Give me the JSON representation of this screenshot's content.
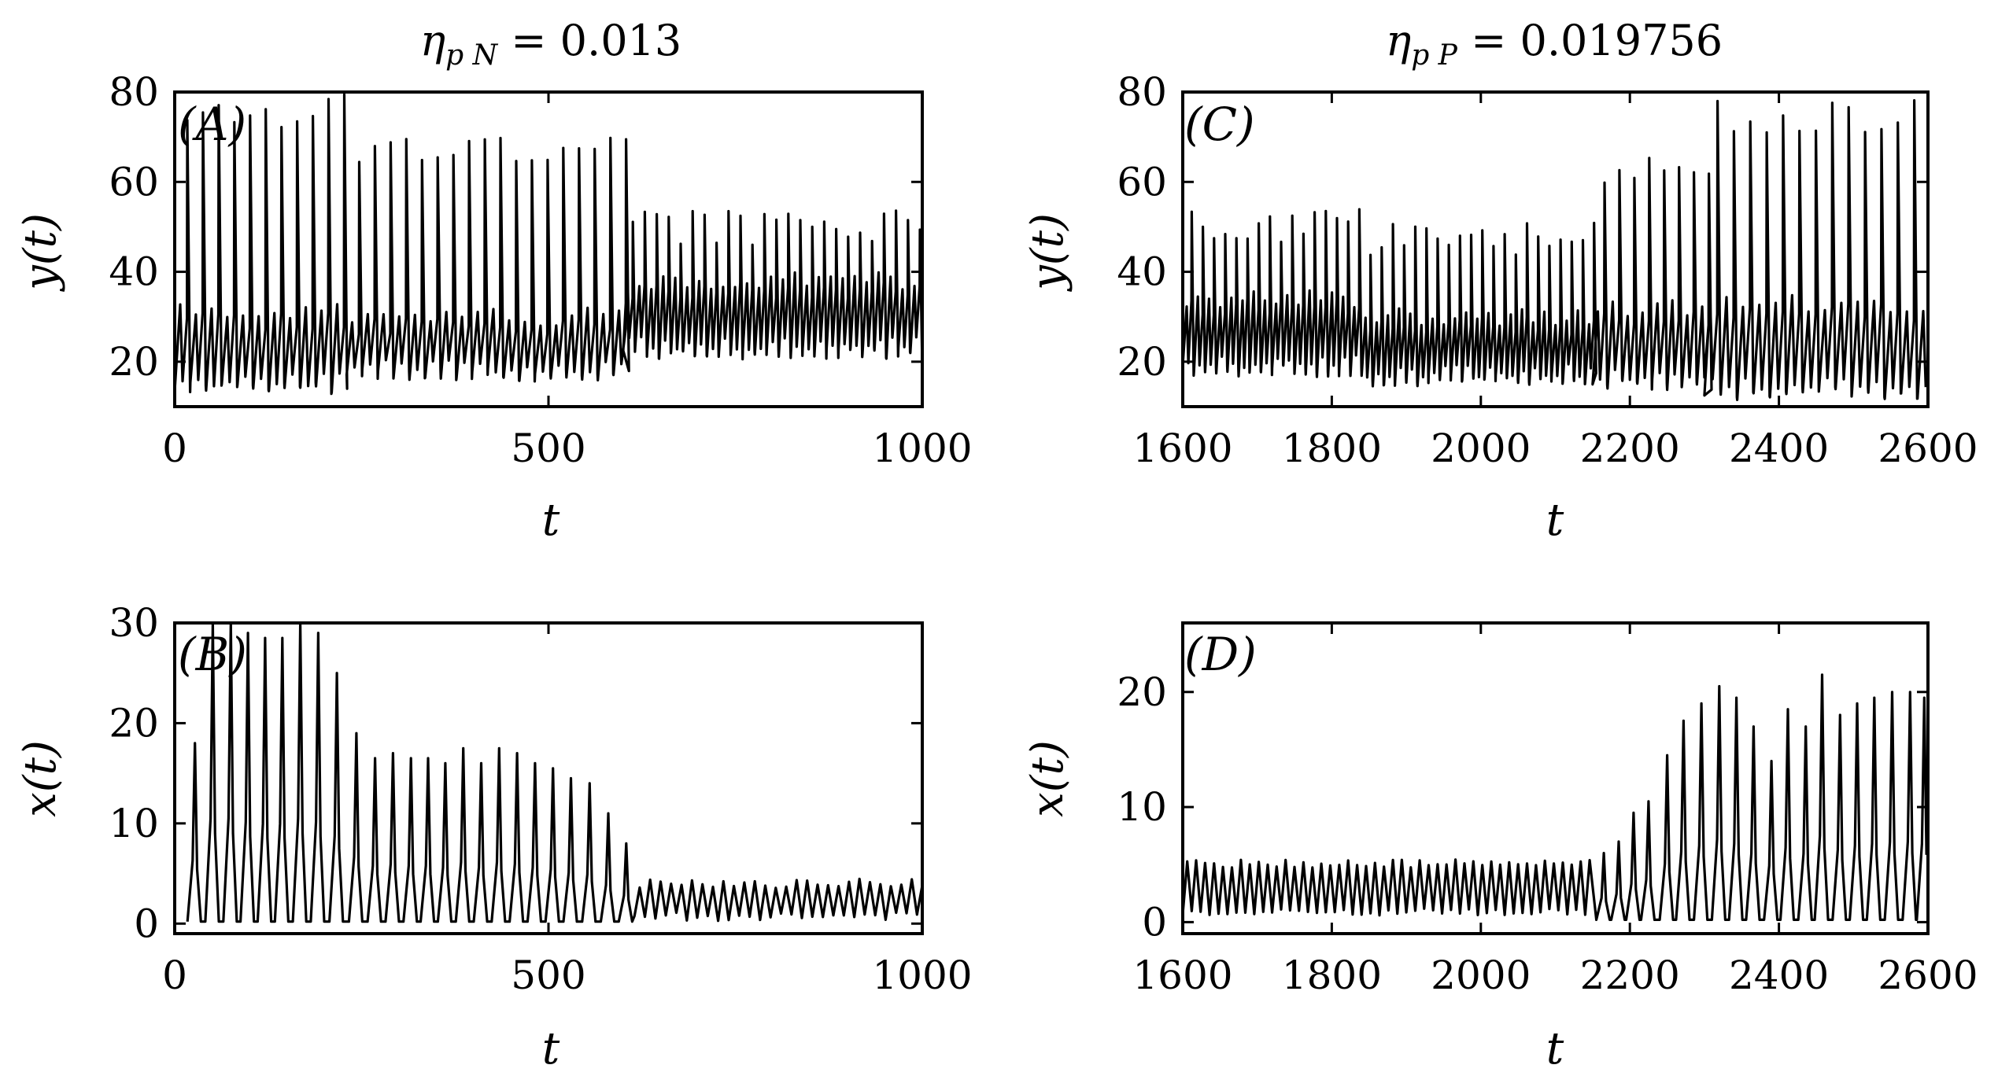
{
  "chart_data": [
    {
      "id": "A",
      "type": "line",
      "panel_label": "(A)",
      "title": "η_pN = 0.013",
      "title_main": "η",
      "title_sub": "p N",
      "title_rest": " = 0.013",
      "xlabel": "t",
      "ylabel": "y(t)",
      "xlim": [
        0,
        1000
      ],
      "ylim": [
        10,
        80
      ],
      "xticks": [
        0,
        500,
        1000
      ],
      "yticks": [
        20,
        40,
        60,
        80
      ],
      "xtick_labels": [
        "0",
        "500",
        "1000"
      ],
      "ytick_labels": [
        "20",
        "40",
        "60",
        "80"
      ],
      "grid": false,
      "series": [
        {
          "kind": "relaxation",
          "t0": 0,
          "t1": 1000,
          "segments": [
            {
              "from": 0,
              "to": 230,
              "period": 21,
              "low": 14,
              "hi": 31,
              "peak": 76
            },
            {
              "from": 230,
              "to": 600,
              "period": 21,
              "low": 17,
              "hi": 30,
              "peak": 68
            },
            {
              "from": 600,
              "to": 1000,
              "period": 16,
              "low": 22,
              "hi": 38,
              "peak": 50
            }
          ]
        }
      ]
    },
    {
      "id": "B",
      "type": "line",
      "panel_label": "(B)",
      "xlabel": "t",
      "ylabel": "x(t)",
      "xlim": [
        0,
        1000
      ],
      "ylim": [
        -1,
        30
      ],
      "xticks": [
        0,
        500,
        1000
      ],
      "yticks": [
        0,
        10,
        20,
        30
      ],
      "xtick_labels": [
        "0",
        "500",
        "1000"
      ],
      "ytick_labels": [
        "0",
        "10",
        "20",
        "30"
      ],
      "grid": false,
      "series": [
        {
          "kind": "spikes",
          "t0": 0,
          "t1": 1000,
          "spikes": [
            [
              27,
              18
            ],
            [
              51,
              30
            ],
            [
              75,
              30
            ],
            [
              98,
              29
            ],
            [
              121,
              28.5
            ],
            [
              144,
              28.5
            ],
            [
              168,
              30
            ],
            [
              192,
              29
            ],
            [
              217,
              25
            ],
            [
              243,
              19
            ],
            [
              268,
              16.5
            ],
            [
              292,
              17
            ],
            [
              316,
              16.5
            ],
            [
              339,
              16.5
            ],
            [
              362,
              16
            ],
            [
              386,
              17.5
            ],
            [
              410,
              16
            ],
            [
              434,
              17.5
            ],
            [
              458,
              17
            ],
            [
              482,
              16
            ],
            [
              506,
              15.5
            ],
            [
              530,
              14.5
            ],
            [
              555,
              14
            ],
            [
              580,
              11
            ],
            [
              604,
              8
            ]
          ],
          "tail": {
            "from": 615,
            "to": 1000,
            "period": 14,
            "mean": 2.2,
            "amp": 1.9
          }
        }
      ]
    },
    {
      "id": "C",
      "type": "line",
      "panel_label": "(C)",
      "title": "η_pP = 0.019756",
      "title_main": "η",
      "title_sub": "p P",
      "title_rest": " = 0.019756",
      "xlabel": "t",
      "ylabel": "y(t)",
      "xlim": [
        1600,
        2600
      ],
      "ylim": [
        10,
        80
      ],
      "xticks": [
        1600,
        1800,
        2000,
        2200,
        2400,
        2600
      ],
      "yticks": [
        20,
        40,
        60,
        80
      ],
      "xtick_labels": [
        "1600",
        "1800",
        "2000",
        "2200",
        "2400",
        "2600"
      ],
      "ytick_labels": [
        "20",
        "40",
        "60",
        "80"
      ],
      "grid": false,
      "series": [
        {
          "kind": "relaxation",
          "t0": 1600,
          "t1": 2600,
          "segments": [
            {
              "from": 1600,
              "to": 1840,
              "period": 15,
              "low": 18,
              "hi": 34,
              "peak": 50
            },
            {
              "from": 1840,
              "to": 2150,
              "period": 15,
              "low": 16,
              "hi": 30,
              "peak": 47
            },
            {
              "from": 2150,
              "to": 2300,
              "period": 20,
              "low": 15,
              "hi": 32,
              "peak": 62
            },
            {
              "from": 2300,
              "to": 2600,
              "period": 22,
              "low": 13,
              "hi": 33,
              "peak": 75
            }
          ]
        }
      ]
    },
    {
      "id": "D",
      "type": "line",
      "panel_label": "(D)",
      "xlabel": "t",
      "ylabel": "x(t)",
      "xlim": [
        1600,
        2600
      ],
      "ylim": [
        -1,
        26
      ],
      "xticks": [
        1600,
        1800,
        2000,
        2200,
        2400,
        2600
      ],
      "yticks": [
        0,
        10,
        20
      ],
      "xtick_labels": [
        "1600",
        "1800",
        "2000",
        "2200",
        "2400",
        "2600"
      ],
      "ytick_labels": [
        "0",
        "10",
        "20"
      ],
      "grid": false,
      "series": [
        {
          "kind": "spikes",
          "t0": 1600,
          "t1": 2600,
          "head": {
            "from": 1600,
            "to": 2150,
            "period": 12,
            "mean": 2.8,
            "amp": 2.4
          },
          "spikes": [
            [
              2165,
              6
            ],
            [
              2185,
              7
            ],
            [
              2205,
              9.5
            ],
            [
              2225,
              10.5
            ],
            [
              2250,
              14.5
            ],
            [
              2272,
              17.5
            ],
            [
              2296,
              19
            ],
            [
              2320,
              20.5
            ],
            [
              2343,
              19.5
            ],
            [
              2366,
              17
            ],
            [
              2390,
              14
            ],
            [
              2412,
              18.5
            ],
            [
              2436,
              17
            ],
            [
              2458,
              21.5
            ],
            [
              2482,
              18
            ],
            [
              2505,
              19
            ],
            [
              2528,
              19.5
            ],
            [
              2552,
              20
            ],
            [
              2576,
              20
            ],
            [
              2595,
              19.5
            ]
          ]
        }
      ]
    }
  ]
}
